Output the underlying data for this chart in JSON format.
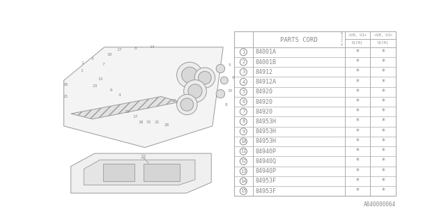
{
  "bg_color": "#ffffff",
  "table_header": "PARTS CORD",
  "parts": [
    {
      "num": "1",
      "code": "84001A"
    },
    {
      "num": "2",
      "code": "84001B"
    },
    {
      "num": "3",
      "code": "84912"
    },
    {
      "num": "4",
      "code": "84912A"
    },
    {
      "num": "5",
      "code": "84920"
    },
    {
      "num": "6",
      "code": "84920"
    },
    {
      "num": "7",
      "code": "84920"
    },
    {
      "num": "8",
      "code": "84953H"
    },
    {
      "num": "9",
      "code": "84953H"
    },
    {
      "num": "10",
      "code": "84953H"
    },
    {
      "num": "11",
      "code": "84940P"
    },
    {
      "num": "12",
      "code": "84940Q"
    },
    {
      "num": "13",
      "code": "84940P"
    },
    {
      "num": "14",
      "code": "84953F"
    },
    {
      "num": "15",
      "code": "84953F"
    }
  ],
  "footer": "A840000064",
  "line_color": "#aaaaaa",
  "text_color": "#888888",
  "diagram_color": "#999999"
}
